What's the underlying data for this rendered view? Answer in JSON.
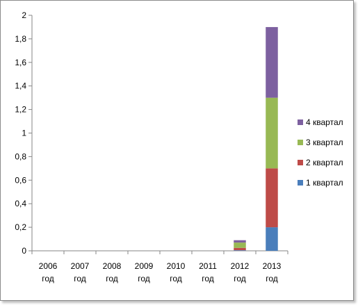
{
  "chart_data": {
    "type": "bar",
    "stacked": true,
    "categories": [
      "2006 год",
      "2007 год",
      "2008 год",
      "2009 год",
      "2010 год",
      "2011 год",
      "2012 год",
      "2013 год"
    ],
    "series": [
      {
        "name": "1 квартал",
        "color": "#4a7ebb",
        "values": [
          0,
          0,
          0,
          0,
          0,
          0,
          0.005,
          0.2
        ]
      },
      {
        "name": "2 квартал",
        "color": "#be4b48",
        "values": [
          0,
          0,
          0,
          0,
          0,
          0,
          0.02,
          0.5
        ]
      },
      {
        "name": "3 квартал",
        "color": "#98b954",
        "values": [
          0,
          0,
          0,
          0,
          0,
          0,
          0.045,
          0.6
        ]
      },
      {
        "name": "4 квартал",
        "color": "#7d60a0",
        "values": [
          0,
          0,
          0,
          0,
          0,
          0,
          0.02,
          0.6
        ]
      }
    ],
    "yticks": [
      "0",
      "0,2",
      "0,4",
      "0,6",
      "0,8",
      "1",
      "1,2",
      "1,4",
      "1,6",
      "1,8",
      "2"
    ],
    "ylim": [
      0,
      2
    ],
    "grid": false,
    "legend_position": "right",
    "title": "",
    "xlabel": "",
    "ylabel": ""
  }
}
